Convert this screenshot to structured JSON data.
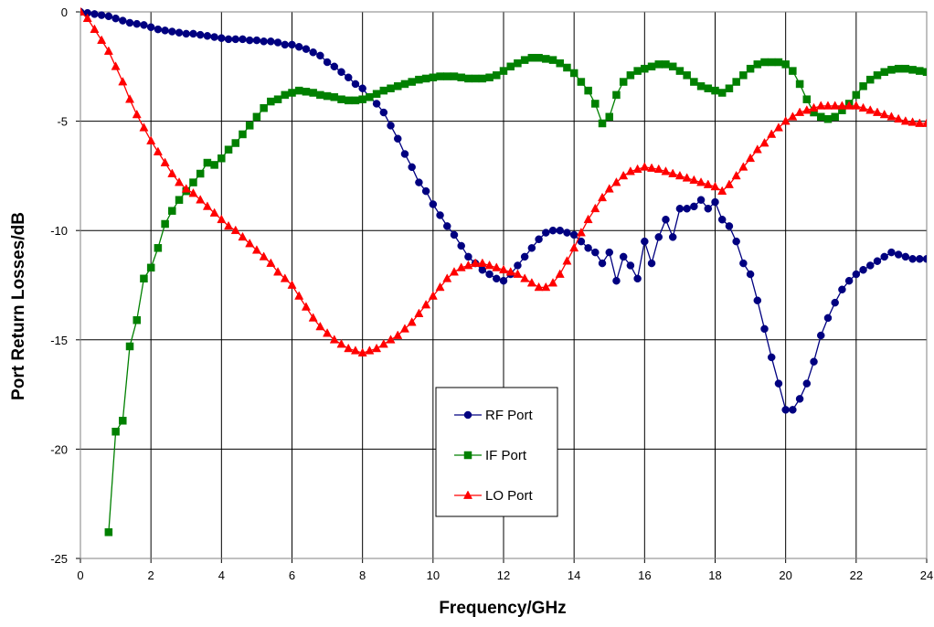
{
  "chart_data": {
    "type": "line",
    "title": "",
    "xlabel": "Frequency/GHz",
    "ylabel": "Port Return Losses/dB",
    "xlim": [
      0,
      24
    ],
    "ylim": [
      -25,
      0
    ],
    "xticks": [
      0,
      2,
      4,
      6,
      8,
      10,
      12,
      14,
      16,
      18,
      20,
      22,
      24
    ],
    "yticks": [
      0,
      -5,
      -10,
      -15,
      -20,
      -25
    ],
    "grid": true,
    "legend_position": "bottom-center",
    "series": [
      {
        "name": "RF Port",
        "color": "#000080",
        "marker": "circle",
        "x": [
          0.0,
          0.2,
          0.4,
          0.6,
          0.8,
          1.0,
          1.2,
          1.4,
          1.6,
          1.8,
          2.0,
          2.2,
          2.4,
          2.6,
          2.8,
          3.0,
          3.2,
          3.4,
          3.6,
          3.8,
          4.0,
          4.2,
          4.4,
          4.6,
          4.8,
          5.0,
          5.2,
          5.4,
          5.6,
          5.8,
          6.0,
          6.2,
          6.4,
          6.6,
          6.8,
          7.0,
          7.2,
          7.4,
          7.6,
          7.8,
          8.0,
          8.2,
          8.4,
          8.6,
          8.8,
          9.0,
          9.2,
          9.4,
          9.6,
          9.8,
          10.0,
          10.2,
          10.4,
          10.6,
          10.8,
          11.0,
          11.2,
          11.4,
          11.6,
          11.8,
          12.0,
          12.2,
          12.4,
          12.6,
          12.8,
          13.0,
          13.2,
          13.4,
          13.6,
          13.8,
          14.0,
          14.2,
          14.4,
          14.6,
          14.8,
          15.0,
          15.2,
          15.4,
          15.6,
          15.8,
          16.0,
          16.2,
          16.4,
          16.6,
          16.8,
          17.0,
          17.2,
          17.4,
          17.6,
          17.8,
          18.0,
          18.2,
          18.4,
          18.6,
          18.8,
          19.0,
          19.2,
          19.4,
          19.6,
          19.8,
          20.0,
          20.2,
          20.4,
          20.6,
          20.8,
          21.0,
          21.2,
          21.4,
          21.6,
          21.8,
          22.0,
          22.2,
          22.4,
          22.6,
          22.8,
          23.0,
          23.2,
          23.4,
          23.6,
          23.8,
          24.0
        ],
        "y": [
          0.0,
          -0.05,
          -0.1,
          -0.15,
          -0.2,
          -0.3,
          -0.4,
          -0.5,
          -0.55,
          -0.6,
          -0.7,
          -0.8,
          -0.85,
          -0.9,
          -0.95,
          -1.0,
          -1.0,
          -1.05,
          -1.1,
          -1.15,
          -1.2,
          -1.25,
          -1.25,
          -1.25,
          -1.3,
          -1.3,
          -1.35,
          -1.35,
          -1.4,
          -1.5,
          -1.5,
          -1.6,
          -1.7,
          -1.85,
          -2.0,
          -2.3,
          -2.5,
          -2.75,
          -3.0,
          -3.3,
          -3.5,
          -3.9,
          -4.2,
          -4.6,
          -5.2,
          -5.8,
          -6.5,
          -7.1,
          -7.8,
          -8.2,
          -8.8,
          -9.3,
          -9.8,
          -10.2,
          -10.7,
          -11.2,
          -11.5,
          -11.8,
          -12.0,
          -12.2,
          -12.3,
          -12.0,
          -11.6,
          -11.2,
          -10.8,
          -10.4,
          -10.1,
          -10.0,
          -10.0,
          -10.1,
          -10.2,
          -10.5,
          -10.8,
          -11.0,
          -11.5,
          -11.0,
          -12.3,
          -11.2,
          -11.6,
          -12.2,
          -10.5,
          -11.5,
          -10.3,
          -9.5,
          -10.3,
          -9.0,
          -9.0,
          -8.9,
          -8.6,
          -9.0,
          -8.7,
          -9.5,
          -9.8,
          -10.5,
          -11.5,
          -12.0,
          -13.2,
          -14.5,
          -15.8,
          -17.0,
          -18.2,
          -18.2,
          -17.7,
          -17.0,
          -16.0,
          -14.8,
          -14.0,
          -13.3,
          -12.7,
          -12.3,
          -12.0,
          -11.8,
          -11.6,
          -11.4,
          -11.2,
          -11.0,
          -11.1,
          -11.2,
          -11.3,
          -11.3,
          -11.3
        ]
      },
      {
        "name": "IF Port",
        "color": "#008000",
        "marker": "square",
        "x": [
          0.8,
          1.0,
          1.2,
          1.4,
          1.6,
          1.8,
          2.0,
          2.2,
          2.4,
          2.6,
          2.8,
          3.0,
          3.2,
          3.4,
          3.6,
          3.8,
          4.0,
          4.2,
          4.4,
          4.6,
          4.8,
          5.0,
          5.2,
          5.4,
          5.6,
          5.8,
          6.0,
          6.2,
          6.4,
          6.6,
          6.8,
          7.0,
          7.2,
          7.4,
          7.6,
          7.8,
          8.0,
          8.2,
          8.4,
          8.6,
          8.8,
          9.0,
          9.2,
          9.4,
          9.6,
          9.8,
          10.0,
          10.2,
          10.4,
          10.6,
          10.8,
          11.0,
          11.2,
          11.4,
          11.6,
          11.8,
          12.0,
          12.2,
          12.4,
          12.6,
          12.8,
          13.0,
          13.2,
          13.4,
          13.6,
          13.8,
          14.0,
          14.2,
          14.4,
          14.6,
          14.8,
          15.0,
          15.2,
          15.4,
          15.6,
          15.8,
          16.0,
          16.2,
          16.4,
          16.6,
          16.8,
          17.0,
          17.2,
          17.4,
          17.6,
          17.8,
          18.0,
          18.2,
          18.4,
          18.6,
          18.8,
          19.0,
          19.2,
          19.4,
          19.6,
          19.8,
          20.0,
          20.2,
          20.4,
          20.6,
          20.8,
          21.0,
          21.2,
          21.4,
          21.6,
          21.8,
          22.0,
          22.2,
          22.4,
          22.6,
          22.8,
          23.0,
          23.2,
          23.4,
          23.6,
          23.8,
          24.0
        ],
        "y": [
          -23.8,
          -19.2,
          -18.7,
          -15.3,
          -14.1,
          -12.2,
          -11.7,
          -10.8,
          -9.7,
          -9.1,
          -8.6,
          -8.2,
          -7.8,
          -7.4,
          -6.9,
          -7.0,
          -6.7,
          -6.3,
          -6.0,
          -5.6,
          -5.2,
          -4.8,
          -4.4,
          -4.1,
          -4.0,
          -3.8,
          -3.7,
          -3.6,
          -3.65,
          -3.7,
          -3.8,
          -3.85,
          -3.9,
          -4.0,
          -4.05,
          -4.05,
          -4.0,
          -3.9,
          -3.75,
          -3.6,
          -3.5,
          -3.4,
          -3.3,
          -3.2,
          -3.1,
          -3.05,
          -3.0,
          -2.95,
          -2.95,
          -2.95,
          -3.0,
          -3.05,
          -3.05,
          -3.05,
          -3.0,
          -2.9,
          -2.7,
          -2.5,
          -2.35,
          -2.2,
          -2.1,
          -2.1,
          -2.15,
          -2.2,
          -2.35,
          -2.55,
          -2.8,
          -3.2,
          -3.6,
          -4.2,
          -5.1,
          -4.8,
          -3.8,
          -3.2,
          -2.9,
          -2.7,
          -2.6,
          -2.5,
          -2.4,
          -2.4,
          -2.5,
          -2.7,
          -2.9,
          -3.2,
          -3.4,
          -3.5,
          -3.6,
          -3.7,
          -3.5,
          -3.2,
          -2.9,
          -2.6,
          -2.4,
          -2.3,
          -2.3,
          -2.3,
          -2.4,
          -2.7,
          -3.3,
          -4.0,
          -4.6,
          -4.8,
          -4.9,
          -4.8,
          -4.5,
          -4.2,
          -3.8,
          -3.4,
          -3.1,
          -2.9,
          -2.75,
          -2.65,
          -2.6,
          -2.6,
          -2.65,
          -2.7,
          -2.75
        ]
      },
      {
        "name": "LO Port",
        "color": "#ff0000",
        "marker": "triangle",
        "x": [
          0.0,
          0.2,
          0.4,
          0.6,
          0.8,
          1.0,
          1.2,
          1.4,
          1.6,
          1.8,
          2.0,
          2.2,
          2.4,
          2.6,
          2.8,
          3.0,
          3.2,
          3.4,
          3.6,
          3.8,
          4.0,
          4.2,
          4.4,
          4.6,
          4.8,
          5.0,
          5.2,
          5.4,
          5.6,
          5.8,
          6.0,
          6.2,
          6.4,
          6.6,
          6.8,
          7.0,
          7.2,
          7.4,
          7.6,
          7.8,
          8.0,
          8.2,
          8.4,
          8.6,
          8.8,
          9.0,
          9.2,
          9.4,
          9.6,
          9.8,
          10.0,
          10.2,
          10.4,
          10.6,
          10.8,
          11.0,
          11.2,
          11.4,
          11.6,
          11.8,
          12.0,
          12.2,
          12.4,
          12.6,
          12.8,
          13.0,
          13.2,
          13.4,
          13.6,
          13.8,
          14.0,
          14.2,
          14.4,
          14.6,
          14.8,
          15.0,
          15.2,
          15.4,
          15.6,
          15.8,
          16.0,
          16.2,
          16.4,
          16.6,
          16.8,
          17.0,
          17.2,
          17.4,
          17.6,
          17.8,
          18.0,
          18.2,
          18.4,
          18.6,
          18.8,
          19.0,
          19.2,
          19.4,
          19.6,
          19.8,
          20.0,
          20.2,
          20.4,
          20.6,
          20.8,
          21.0,
          21.2,
          21.4,
          21.6,
          21.8,
          22.0,
          22.2,
          22.4,
          22.6,
          22.8,
          23.0,
          23.2,
          23.4,
          23.6,
          23.8,
          24.0
        ],
        "y": [
          0.0,
          -0.3,
          -0.8,
          -1.3,
          -1.8,
          -2.5,
          -3.2,
          -4.0,
          -4.7,
          -5.3,
          -5.9,
          -6.4,
          -6.9,
          -7.4,
          -7.8,
          -8.1,
          -8.3,
          -8.6,
          -8.9,
          -9.2,
          -9.5,
          -9.8,
          -10.0,
          -10.3,
          -10.6,
          -10.9,
          -11.2,
          -11.5,
          -11.9,
          -12.2,
          -12.5,
          -13.0,
          -13.5,
          -14.0,
          -14.4,
          -14.7,
          -15.0,
          -15.2,
          -15.4,
          -15.5,
          -15.6,
          -15.5,
          -15.4,
          -15.2,
          -15.0,
          -14.8,
          -14.5,
          -14.2,
          -13.8,
          -13.4,
          -13.0,
          -12.6,
          -12.2,
          -11.9,
          -11.7,
          -11.6,
          -11.5,
          -11.5,
          -11.6,
          -11.7,
          -11.8,
          -11.9,
          -12.0,
          -12.2,
          -12.4,
          -12.6,
          -12.6,
          -12.4,
          -12.0,
          -11.4,
          -10.8,
          -10.1,
          -9.5,
          -9.0,
          -8.5,
          -8.1,
          -7.8,
          -7.5,
          -7.3,
          -7.2,
          -7.1,
          -7.15,
          -7.2,
          -7.3,
          -7.4,
          -7.5,
          -7.6,
          -7.7,
          -7.8,
          -7.9,
          -8.0,
          -8.2,
          -7.9,
          -7.5,
          -7.1,
          -6.7,
          -6.3,
          -6.0,
          -5.6,
          -5.3,
          -5.0,
          -4.8,
          -4.6,
          -4.5,
          -4.4,
          -4.3,
          -4.3,
          -4.3,
          -4.3,
          -4.3,
          -4.3,
          -4.4,
          -4.5,
          -4.6,
          -4.7,
          -4.8,
          -4.9,
          -5.0,
          -5.05,
          -5.1,
          -5.1
        ]
      }
    ]
  }
}
